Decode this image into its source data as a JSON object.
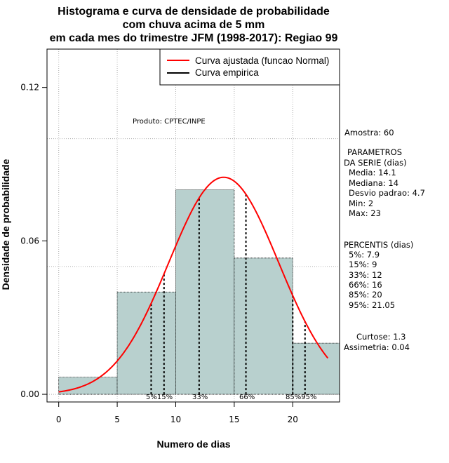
{
  "chart_data": {
    "type": "bar",
    "title_lines": [
      "Histograma e curva de densidade de probabilidade",
      "com chuva acima de 5 mm",
      "em cada mes do trimestre JFM (1998-2017): Regiao 99"
    ],
    "xlabel": "Numero de dias",
    "ylabel": "Densidade de probabilidade",
    "xlim": [
      -1,
      24
    ],
    "ylim": [
      -0.003,
      0.135
    ],
    "xticks": [
      0,
      5,
      10,
      15,
      20
    ],
    "xtick_labels": [
      "0",
      "5",
      "10",
      "15",
      "20"
    ],
    "yticks": [
      0.0,
      0.06,
      0.12
    ],
    "ytick_labels": [
      "0.00",
      "0.06",
      "0.12"
    ],
    "grid_x": [
      0,
      5,
      10,
      15,
      20
    ],
    "grid_y": [
      0.0,
      0.05,
      0.1
    ],
    "bins": [
      {
        "x0": 0,
        "x1": 5,
        "density": 0.0067
      },
      {
        "x0": 5,
        "x1": 10,
        "density": 0.04
      },
      {
        "x0": 10,
        "x1": 15,
        "density": 0.08
      },
      {
        "x0": 15,
        "x1": 20,
        "density": 0.0533
      },
      {
        "x0": 20,
        "x1": 24,
        "density": 0.02
      }
    ],
    "normal_curve": {
      "name": "Curva ajustada (funcao Normal)",
      "mean": 14.1,
      "sd": 4.7,
      "from": 0,
      "to": 23,
      "color": "#ff0000"
    },
    "percentile_lines": [
      {
        "label": "5%",
        "x": 7.9
      },
      {
        "label": "15%",
        "x": 9
      },
      {
        "label": "33%",
        "x": 12
      },
      {
        "label": "66%",
        "x": 16
      },
      {
        "label": "85%",
        "x": 20
      },
      {
        "label": "95%",
        "x": 21.05
      }
    ],
    "percentile_label_text": [
      "5%15%",
      "33%",
      "66%",
      "85%95%"
    ],
    "legend": {
      "position": "top-right",
      "entries": [
        {
          "label": "Curva ajustada (funcao Normal)",
          "color": "#ff0000"
        },
        {
          "label": "Curva empirica",
          "color": "#000000"
        }
      ]
    },
    "annotation": "Produto: CPTEC/INPE",
    "bar_color": "#b8d0ce"
  },
  "sidebar": {
    "amostra": "Amostra: 60",
    "params_title_1": "PARAMETROS",
    "params_title_2": "DA SERIE (dias)",
    "params": [
      "Media: 14.1",
      "Mediana: 14",
      "Desvio padrao: 4.7",
      "Min: 2",
      "Max: 23"
    ],
    "percentis_title": "PERCENTIS (dias)",
    "percentis": [
      "5%: 7.9",
      "15%: 9",
      "33%: 12",
      "66%: 16",
      "85%: 20",
      "95%: 21.05"
    ],
    "curtose": "Curtose: 1.3",
    "assimetria": "Assimetria: 0.04"
  }
}
